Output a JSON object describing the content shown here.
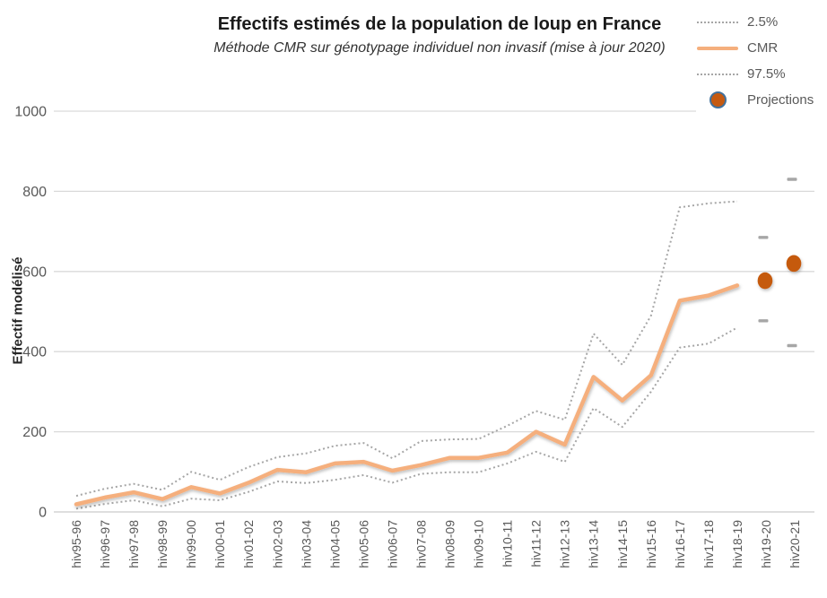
{
  "header": {
    "title": "Effectifs estimés de la population  de loup en France",
    "subtitle": "Méthode CMR sur génotypage individuel non invasif (mise à jour 2020)"
  },
  "legend": {
    "items": [
      {
        "label": "2.5%",
        "marker": "dotted-line",
        "color": "#A6A6A6"
      },
      {
        "label": "CMR",
        "marker": "solid-line",
        "color": "#F5AF7D"
      },
      {
        "label": "97.5%",
        "marker": "dotted-line",
        "color": "#A6A6A6"
      },
      {
        "label": "Projections",
        "marker": "dot",
        "color": "#C55A11",
        "ring_color": "#41719C"
      }
    ]
  },
  "chart_data": {
    "type": "line",
    "title": "Effectifs estimés de la population  de loup en France",
    "subtitle": "Méthode CMR sur génotypage individuel non invasif (mise à jour 2020)",
    "xlabel": "",
    "ylabel": "Effectif modélisé",
    "ylim": [
      0,
      1000
    ],
    "yticks": [
      0,
      200,
      400,
      600,
      800,
      1000
    ],
    "grid": true,
    "legend_position": "top-right",
    "categories": [
      "hiv95-96",
      "hiv96-97",
      "hiv97-98",
      "hiv98-99",
      "hiv99-00",
      "hiv00-01",
      "hiv01-02",
      "hiv02-03",
      "hiv03-04",
      "hiv04-05",
      "hiv05-06",
      "hiv06-07",
      "hiv07-08",
      "hiv08-09",
      "hiv09-10",
      "hiv10-11",
      "hiv11-12",
      "hiv12-13",
      "hiv13-14",
      "hiv14-15",
      "hiv15-16",
      "hiv16-17",
      "hiv17-18",
      "hiv18-19",
      "hiv19-20",
      "hiv20-21"
    ],
    "series": [
      {
        "name": "2.5%",
        "style": "dotted",
        "color": "#A6A6A6",
        "values": [
          8,
          20,
          29,
          14,
          33,
          29,
          50,
          76,
          72,
          80,
          92,
          73,
          95,
          99,
          99,
          121,
          150,
          125,
          259,
          212,
          300,
          410,
          420,
          460
        ]
      },
      {
        "name": "CMR",
        "style": "solid",
        "color": "#F5AF7D",
        "values": [
          19,
          36,
          49,
          32,
          62,
          46,
          73,
          105,
          99,
          121,
          125,
          103,
          117,
          135,
          135,
          148,
          200,
          168,
          337,
          278,
          341,
          527,
          540,
          565
        ]
      },
      {
        "name": "97.5%",
        "style": "dotted",
        "color": "#A6A6A6",
        "values": [
          40,
          58,
          70,
          55,
          100,
          80,
          112,
          137,
          146,
          165,
          172,
          134,
          177,
          181,
          182,
          215,
          252,
          230,
          445,
          367,
          490,
          760,
          770,
          775
        ]
      }
    ],
    "projections": {
      "name": "Projections",
      "dot_color": "#C55A11",
      "whisker_color": "#A6A6A6",
      "points": [
        {
          "category": "hiv19-20",
          "value": 577,
          "low": 477,
          "high": 685
        },
        {
          "category": "hiv20-21",
          "value": 620,
          "low": 415,
          "high": 830
        }
      ]
    },
    "colors": {
      "gridline": "#D9D9D9",
      "zero_line": "#C9C9C9",
      "axis_text": "#595959"
    }
  }
}
